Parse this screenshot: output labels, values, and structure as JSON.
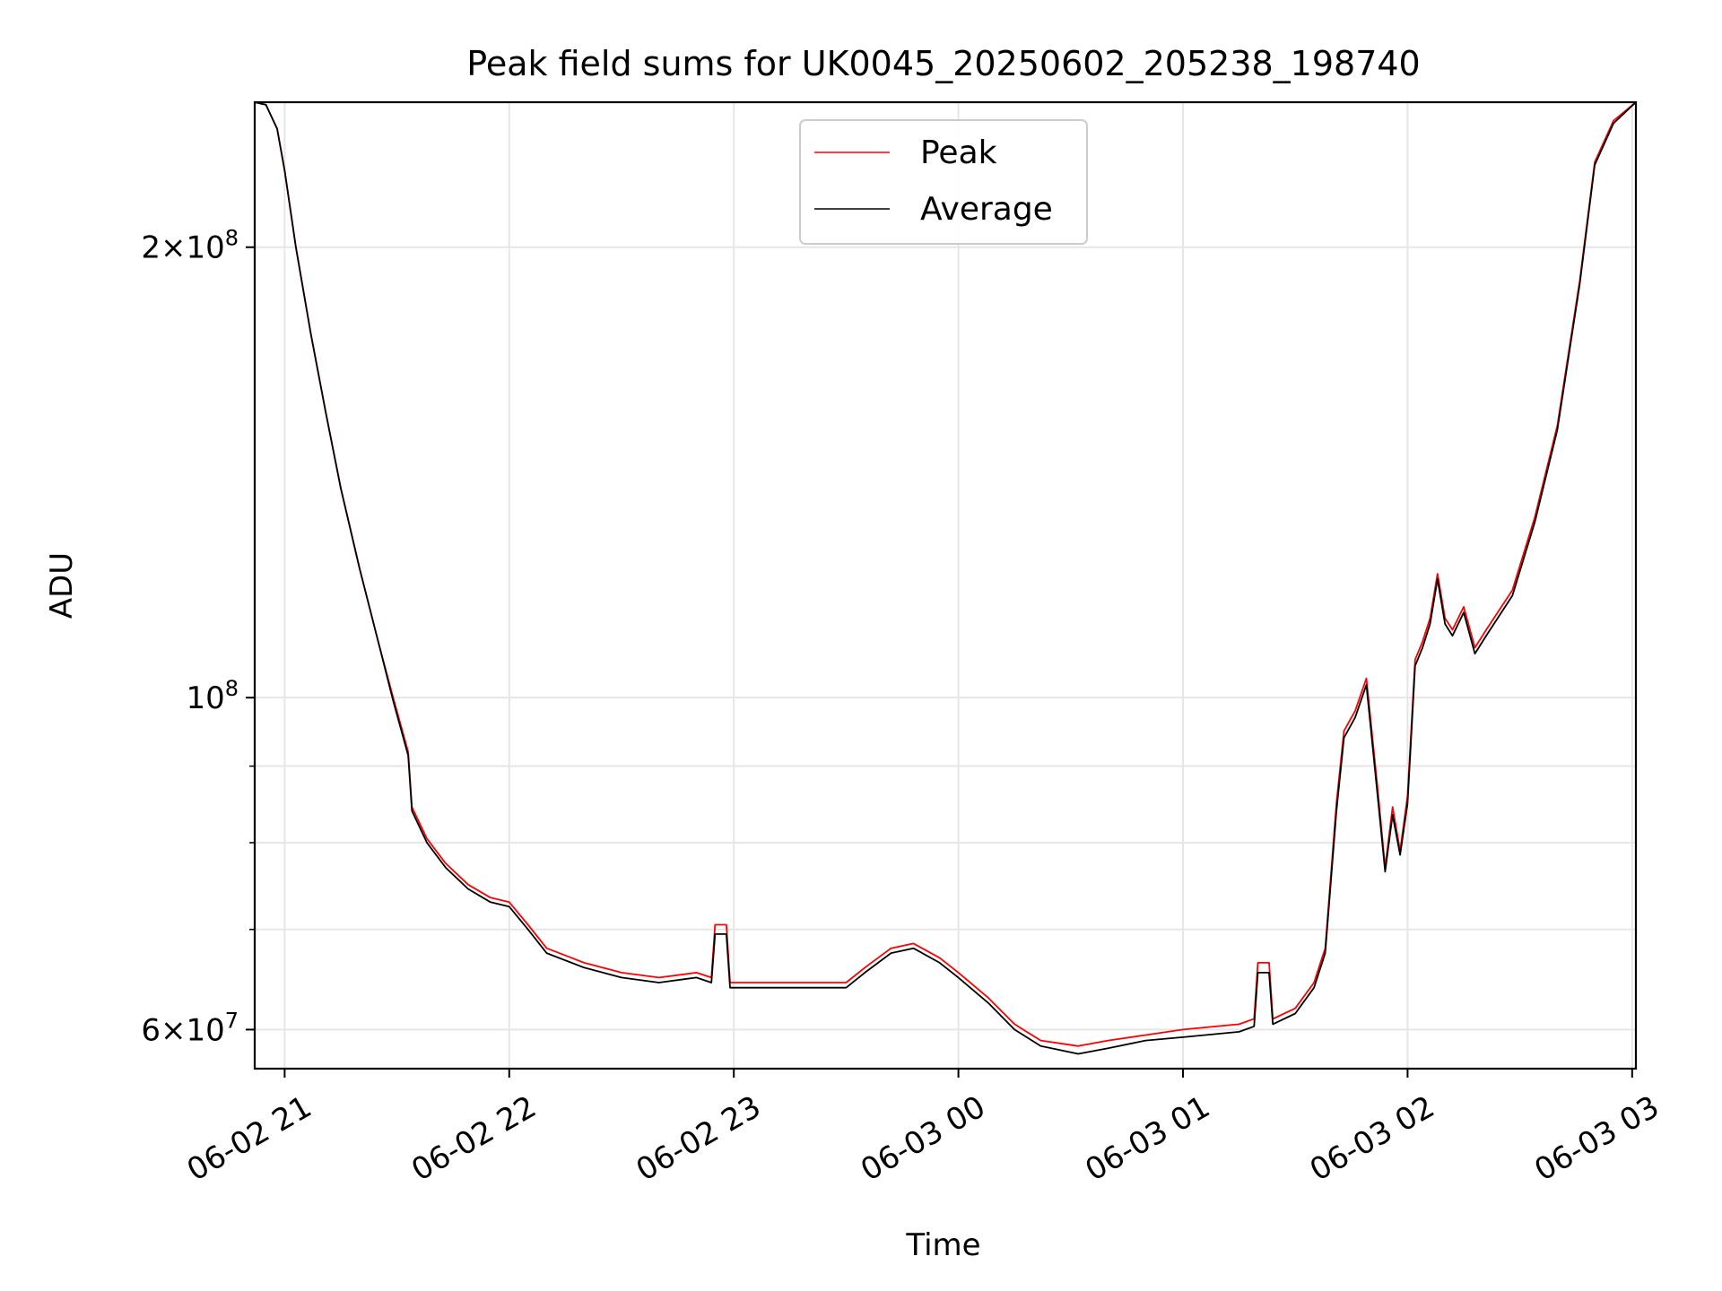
{
  "chart_data": {
    "type": "line",
    "title": "Peak field sums for UK0045_20250602_205238_198740",
    "xlabel": "Time",
    "ylabel": "ADU",
    "yscale": "log",
    "ylim": [
      56500000,
      250000000
    ],
    "xlim": [
      "2025-06-02 20:52",
      "2025-06-03 03:01"
    ],
    "x_tick_labels": [
      "06-02 21",
      "06-02 22",
      "06-02 23",
      "06-03 00",
      "06-03 01",
      "06-03 02",
      "06-03 03"
    ],
    "x_tick_times": [
      "2025-06-02 21:00",
      "2025-06-02 22:00",
      "2025-06-02 23:00",
      "2025-06-03 00:00",
      "2025-06-03 01:00",
      "2025-06-03 02:00",
      "2025-06-03 03:00"
    ],
    "y_tick_labels": [
      {
        "value": 200000000,
        "mantissa": "2",
        "exponent": "8"
      },
      {
        "value": 100000000,
        "mantissa": "",
        "exponent": "8"
      },
      {
        "value": 60000000,
        "mantissa": "6",
        "exponent": "7"
      }
    ],
    "y_minor_grid": [
      70000000,
      80000000,
      90000000
    ],
    "grid": true,
    "legend_position": "upper center",
    "series": [
      {
        "name": "Peak",
        "color": "#ff0000",
        "points": [
          [
            "2025-06-02 20:52",
            250000000
          ],
          [
            "2025-06-02 20:55",
            249000000
          ],
          [
            "2025-06-02 20:58",
            240000000
          ],
          [
            "2025-06-02 21:00",
            225000000
          ],
          [
            "2025-06-02 21:03",
            200000000
          ],
          [
            "2025-06-02 21:07",
            175000000
          ],
          [
            "2025-06-02 21:11",
            155000000
          ],
          [
            "2025-06-02 21:15",
            138000000
          ],
          [
            "2025-06-02 21:20",
            122000000
          ],
          [
            "2025-06-02 21:25",
            109000000
          ],
          [
            "2025-06-02 21:29",
            100000000
          ],
          [
            "2025-06-02 21:33",
            92000000
          ],
          [
            "2025-06-02 21:34",
            84500000
          ],
          [
            "2025-06-02 21:38",
            80500000
          ],
          [
            "2025-06-02 21:43",
            77500000
          ],
          [
            "2025-06-02 21:49",
            75000000
          ],
          [
            "2025-06-02 21:55",
            73500000
          ],
          [
            "2025-06-02 22:00",
            73000000
          ],
          [
            "2025-06-02 22:05",
            70500000
          ],
          [
            "2025-06-02 22:10",
            68000000
          ],
          [
            "2025-06-02 22:20",
            66500000
          ],
          [
            "2025-06-02 22:30",
            65500000
          ],
          [
            "2025-06-02 22:40",
            65000000
          ],
          [
            "2025-06-02 22:50",
            65500000
          ],
          [
            "2025-06-02 22:54",
            65000000
          ],
          [
            "2025-06-02 22:55",
            70500000
          ],
          [
            "2025-06-02 22:58",
            70500000
          ],
          [
            "2025-06-02 22:59",
            64500000
          ],
          [
            "2025-06-02 23:10",
            64500000
          ],
          [
            "2025-06-02 23:20",
            64500000
          ],
          [
            "2025-06-02 23:30",
            64500000
          ],
          [
            "2025-06-02 23:35",
            66000000
          ],
          [
            "2025-06-02 23:42",
            68000000
          ],
          [
            "2025-06-02 23:48",
            68500000
          ],
          [
            "2025-06-02 23:55",
            67000000
          ],
          [
            "2025-06-03 00:00",
            65500000
          ],
          [
            "2025-06-03 00:08",
            63000000
          ],
          [
            "2025-06-03 00:15",
            60500000
          ],
          [
            "2025-06-03 00:22",
            59000000
          ],
          [
            "2025-06-03 00:32",
            58500000
          ],
          [
            "2025-06-03 00:40",
            59000000
          ],
          [
            "2025-06-03 00:50",
            59500000
          ],
          [
            "2025-06-03 01:00",
            60000000
          ],
          [
            "2025-06-03 01:15",
            60500000
          ],
          [
            "2025-06-03 01:19",
            61000000
          ],
          [
            "2025-06-03 01:20",
            66500000
          ],
          [
            "2025-06-03 01:23",
            66500000
          ],
          [
            "2025-06-03 01:24",
            61000000
          ],
          [
            "2025-06-03 01:30",
            62000000
          ],
          [
            "2025-06-03 01:35",
            64500000
          ],
          [
            "2025-06-03 01:38",
            68000000
          ],
          [
            "2025-06-03 01:41",
            85000000
          ],
          [
            "2025-06-03 01:43",
            95000000
          ],
          [
            "2025-06-03 01:46",
            98000000
          ],
          [
            "2025-06-03 01:49",
            103000000
          ],
          [
            "2025-06-03 01:52",
            87000000
          ],
          [
            "2025-06-03 01:54",
            77000000
          ],
          [
            "2025-06-03 01:56",
            84500000
          ],
          [
            "2025-06-03 01:58",
            79000000
          ],
          [
            "2025-06-03 02:00",
            86000000
          ],
          [
            "2025-06-03 02:02",
            106000000
          ],
          [
            "2025-06-03 02:04",
            109000000
          ],
          [
            "2025-06-03 02:06",
            113000000
          ],
          [
            "2025-06-03 02:08",
            121000000
          ],
          [
            "2025-06-03 02:10",
            113000000
          ],
          [
            "2025-06-03 02:12",
            111000000
          ],
          [
            "2025-06-03 02:15",
            115000000
          ],
          [
            "2025-06-03 02:18",
            108000000
          ],
          [
            "2025-06-03 02:21",
            111000000
          ],
          [
            "2025-06-03 02:28",
            118000000
          ],
          [
            "2025-06-03 02:34",
            132000000
          ],
          [
            "2025-06-03 02:40",
            152000000
          ],
          [
            "2025-06-03 02:46",
            190000000
          ],
          [
            "2025-06-03 02:50",
            228000000
          ],
          [
            "2025-06-03 02:55",
            243000000
          ],
          [
            "2025-06-03 03:01",
            250000000
          ]
        ]
      },
      {
        "name": "Average",
        "color": "#000000",
        "points": [
          [
            "2025-06-02 20:52",
            250000000
          ],
          [
            "2025-06-02 20:55",
            249000000
          ],
          [
            "2025-06-02 20:58",
            240000000
          ],
          [
            "2025-06-02 21:00",
            225000000
          ],
          [
            "2025-06-02 21:03",
            200000000
          ],
          [
            "2025-06-02 21:07",
            175000000
          ],
          [
            "2025-06-02 21:11",
            155000000
          ],
          [
            "2025-06-02 21:15",
            138000000
          ],
          [
            "2025-06-02 21:20",
            122000000
          ],
          [
            "2025-06-02 21:25",
            109000000
          ],
          [
            "2025-06-02 21:29",
            99500000
          ],
          [
            "2025-06-02 21:33",
            91500000
          ],
          [
            "2025-06-02 21:34",
            84000000
          ],
          [
            "2025-06-02 21:38",
            80000000
          ],
          [
            "2025-06-02 21:43",
            77000000
          ],
          [
            "2025-06-02 21:49",
            74500000
          ],
          [
            "2025-06-02 21:55",
            73000000
          ],
          [
            "2025-06-02 22:00",
            72500000
          ],
          [
            "2025-06-02 22:05",
            70000000
          ],
          [
            "2025-06-02 22:10",
            67500000
          ],
          [
            "2025-06-02 22:20",
            66000000
          ],
          [
            "2025-06-02 22:30",
            65000000
          ],
          [
            "2025-06-02 22:40",
            64500000
          ],
          [
            "2025-06-02 22:50",
            65000000
          ],
          [
            "2025-06-02 22:54",
            64500000
          ],
          [
            "2025-06-02 22:55",
            69500000
          ],
          [
            "2025-06-02 22:58",
            69500000
          ],
          [
            "2025-06-02 22:59",
            64000000
          ],
          [
            "2025-06-02 23:10",
            64000000
          ],
          [
            "2025-06-02 23:20",
            64000000
          ],
          [
            "2025-06-02 23:30",
            64000000
          ],
          [
            "2025-06-02 23:35",
            65500000
          ],
          [
            "2025-06-02 23:42",
            67500000
          ],
          [
            "2025-06-02 23:48",
            68000000
          ],
          [
            "2025-06-02 23:55",
            66500000
          ],
          [
            "2025-06-03 00:00",
            65000000
          ],
          [
            "2025-06-03 00:08",
            62500000
          ],
          [
            "2025-06-03 00:15",
            60000000
          ],
          [
            "2025-06-03 00:22",
            58500000
          ],
          [
            "2025-06-03 00:32",
            57800000
          ],
          [
            "2025-06-03 00:40",
            58300000
          ],
          [
            "2025-06-03 00:50",
            59000000
          ],
          [
            "2025-06-03 01:00",
            59300000
          ],
          [
            "2025-06-03 01:15",
            59800000
          ],
          [
            "2025-06-03 01:19",
            60300000
          ],
          [
            "2025-06-03 01:20",
            65500000
          ],
          [
            "2025-06-03 01:23",
            65500000
          ],
          [
            "2025-06-03 01:24",
            60500000
          ],
          [
            "2025-06-03 01:30",
            61500000
          ],
          [
            "2025-06-03 01:35",
            64000000
          ],
          [
            "2025-06-03 01:38",
            67500000
          ],
          [
            "2025-06-03 01:41",
            84000000
          ],
          [
            "2025-06-03 01:43",
            94000000
          ],
          [
            "2025-06-03 01:46",
            97000000
          ],
          [
            "2025-06-03 01:49",
            102000000
          ],
          [
            "2025-06-03 01:52",
            86000000
          ],
          [
            "2025-06-03 01:54",
            76500000
          ],
          [
            "2025-06-03 01:56",
            83500000
          ],
          [
            "2025-06-03 01:58",
            78500000
          ],
          [
            "2025-06-03 02:00",
            85000000
          ],
          [
            "2025-06-03 02:02",
            105000000
          ],
          [
            "2025-06-03 02:04",
            108000000
          ],
          [
            "2025-06-03 02:06",
            112000000
          ],
          [
            "2025-06-03 02:08",
            120000000
          ],
          [
            "2025-06-03 02:10",
            112000000
          ],
          [
            "2025-06-03 02:12",
            110000000
          ],
          [
            "2025-06-03 02:15",
            114000000
          ],
          [
            "2025-06-03 02:18",
            107000000
          ],
          [
            "2025-06-03 02:21",
            110000000
          ],
          [
            "2025-06-03 02:28",
            117000000
          ],
          [
            "2025-06-03 02:34",
            131000000
          ],
          [
            "2025-06-03 02:40",
            151000000
          ],
          [
            "2025-06-03 02:46",
            189000000
          ],
          [
            "2025-06-03 02:50",
            227000000
          ],
          [
            "2025-06-03 02:55",
            242000000
          ],
          [
            "2025-06-03 03:01",
            250000000
          ]
        ]
      }
    ]
  }
}
